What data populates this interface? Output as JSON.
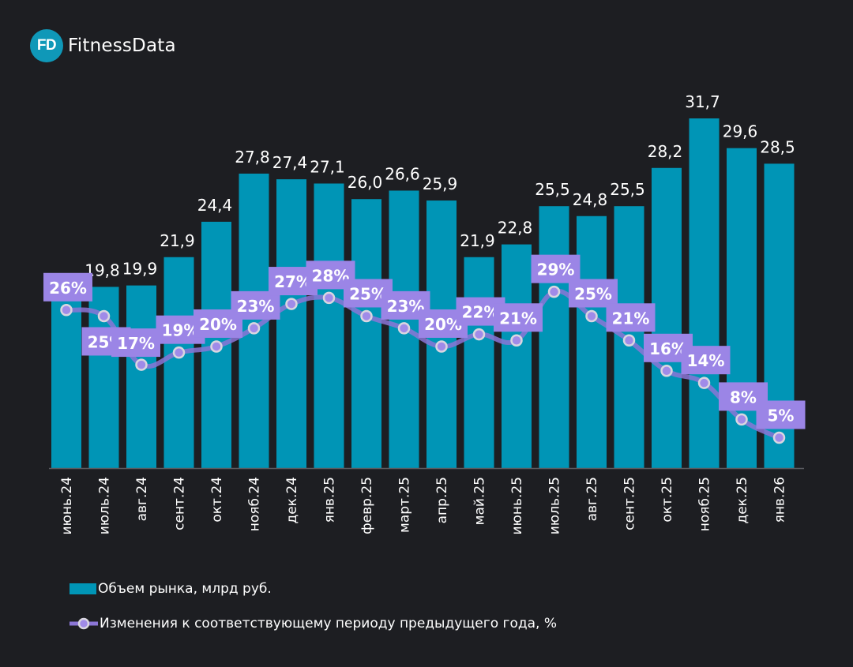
{
  "brand": {
    "logo_badge": "FD",
    "name": "FitnessData"
  },
  "colors": {
    "background": "#1d1e22",
    "bar": "#0095b6",
    "line": "#8b76d6",
    "label_box": "#9b85e6",
    "marker_fill": "#a08be8",
    "marker_stroke": "#d9d6e0",
    "axis": "#5a5b60"
  },
  "chart_data": {
    "type": "bar",
    "title": "",
    "xlabel": "",
    "ylabel": "",
    "ylim": [
      7,
      32
    ],
    "y2lim": [
      0,
      77
    ],
    "grid": false,
    "legend_position": "bottom-left",
    "categories": [
      "июнь.24",
      "июль.24",
      "авг.24",
      "сент.24",
      "окт.24",
      "нояб.24",
      "дек.24",
      "янв.25",
      "февр.25",
      "март.25",
      "апр.25",
      "май.25",
      "июнь.25",
      "июль.25",
      "авг.25",
      "сент.25",
      "окт.25",
      "нояб.25",
      "дек.25",
      "янв.26"
    ],
    "series": [
      {
        "name": "Объем рынка, млрд руб.",
        "type": "bar",
        "values": [
          19.8,
          19.8,
          19.9,
          21.9,
          24.4,
          27.8,
          27.4,
          27.1,
          26.0,
          26.6,
          25.9,
          21.9,
          22.8,
          25.5,
          24.8,
          25.5,
          28.2,
          31.7,
          29.6,
          28.5
        ],
        "labels": [
          "",
          "19,8",
          "19,9",
          "21,9",
          "24,4",
          "27,8",
          "27,4",
          "27,1",
          "26,0",
          "26,6",
          "25,9",
          "21,9",
          "22,8",
          "25,5",
          "24,8",
          "25,5",
          "28,2",
          "31,7",
          "29,6",
          "28,5"
        ]
      },
      {
        "name": "Изменения к соответствующему периоду предыдущего года, %",
        "type": "line",
        "values": [
          26,
          25,
          17,
          19,
          20,
          23,
          27,
          28,
          25,
          23,
          20,
          22,
          21,
          29,
          25,
          21,
          16,
          14,
          8,
          5
        ],
        "labels": [
          "26%",
          "25%",
          "17%",
          "19%",
          "20%",
          "23%",
          "27%",
          "28%",
          "25%",
          "23%",
          "20%",
          "22%",
          "21%",
          "29%",
          "25%",
          "21%",
          "16%",
          "14%",
          "8%",
          "5%"
        ]
      }
    ]
  },
  "legend": {
    "bar_label": "Объем рынка, млрд руб.",
    "line_label": "Изменения к соответствующему периоду предыдущего года, %"
  }
}
